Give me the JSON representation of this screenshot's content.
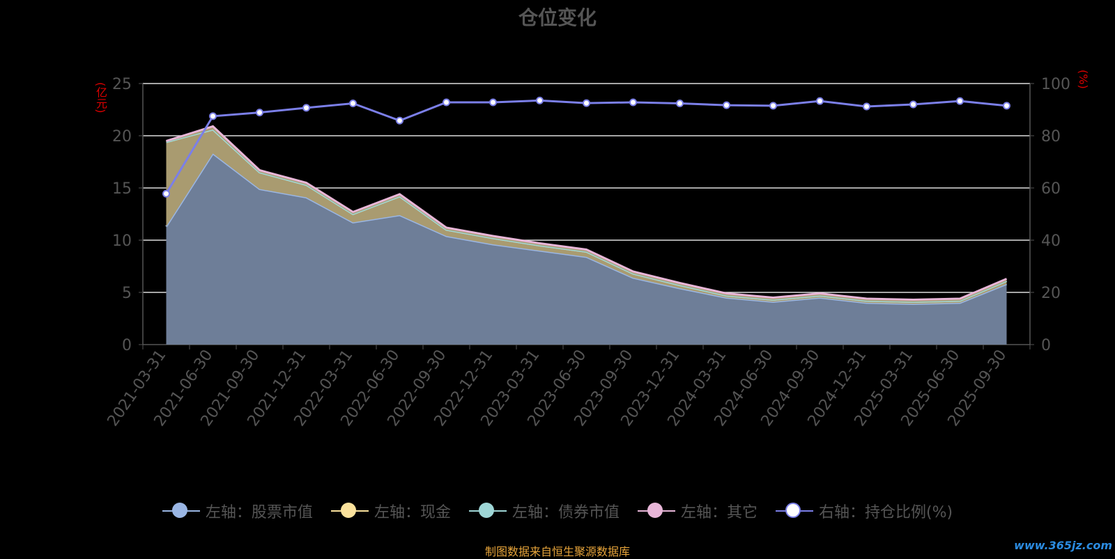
{
  "chart_data": {
    "type": "area",
    "title": "仓位变化",
    "left_axis_unit": "(亿元)",
    "right_axis_unit": "(%)",
    "categories": [
      "2021-03-31",
      "2021-06-30",
      "2021-09-30",
      "2021-12-31",
      "2022-03-31",
      "2022-06-30",
      "2022-09-30",
      "2022-12-31",
      "2023-03-31",
      "2023-06-30",
      "2023-09-30",
      "2023-12-31",
      "2024-03-31",
      "2024-06-30",
      "2024-09-30",
      "2024-12-31",
      "2025-03-31",
      "2025-06-30",
      "2025-09-30"
    ],
    "y_left_lim": [
      0,
      25
    ],
    "y_left_ticks": [
      "0",
      "5",
      "10",
      "15",
      "20",
      "25"
    ],
    "y_right_lim": [
      0,
      100
    ],
    "y_right_ticks": [
      "0",
      "20",
      "40",
      "60",
      "80",
      "100"
    ],
    "grid": true,
    "legend_position": "bottom",
    "series": [
      {
        "name": "左轴：股票市值",
        "axis": "left",
        "stacked": true,
        "color": "#9ab6e4",
        "values": [
          11.3,
          18.3,
          14.9,
          14.1,
          11.7,
          12.4,
          10.4,
          9.6,
          9.0,
          8.4,
          6.4,
          5.4,
          4.5,
          4.1,
          4.5,
          4.0,
          3.9,
          4.0,
          5.8
        ]
      },
      {
        "name": "左轴：现金",
        "axis": "left",
        "stacked": true,
        "color": "#fbe29c",
        "values": [
          8.1,
          2.3,
          1.6,
          1.2,
          0.8,
          1.8,
          0.6,
          0.6,
          0.5,
          0.5,
          0.4,
          0.3,
          0.2,
          0.2,
          0.2,
          0.2,
          0.2,
          0.2,
          0.3
        ]
      },
      {
        "name": "左轴：债券市值",
        "axis": "left",
        "stacked": true,
        "color": "#9ed6d6",
        "values": [
          0,
          0,
          0,
          0,
          0,
          0,
          0,
          0,
          0,
          0,
          0,
          0,
          0,
          0,
          0,
          0,
          0,
          0,
          0
        ]
      },
      {
        "name": "左轴：其它",
        "axis": "left",
        "stacked": true,
        "color": "#e8b6d8",
        "values": [
          0.1,
          0.3,
          0.2,
          0.2,
          0.2,
          0.2,
          0.2,
          0.2,
          0.2,
          0.2,
          0.2,
          0.2,
          0.2,
          0.2,
          0.2,
          0.2,
          0.2,
          0.2,
          0.2
        ]
      },
      {
        "name": "右轴：持仓比例(%)",
        "axis": "right",
        "type": "line",
        "color": "#7b7fe8",
        "values": [
          57.8,
          87.5,
          88.9,
          90.7,
          92.4,
          85.8,
          92.8,
          92.8,
          93.5,
          92.5,
          92.8,
          92.4,
          91.7,
          91.5,
          93.3,
          91.2,
          92.0,
          93.3,
          91.5
        ]
      }
    ]
  },
  "colors": {
    "background": "#000000",
    "stack_fill": "#6e7e98",
    "cash_fill": "#a99b70",
    "grid": "#dddddd",
    "axis": "#555555",
    "source_note": "#e7a43a",
    "watermark": "#2b8be0"
  },
  "footer": {
    "source_note": "制图数据来自恒生聚源数据库",
    "watermark": "www.365jz.com"
  }
}
